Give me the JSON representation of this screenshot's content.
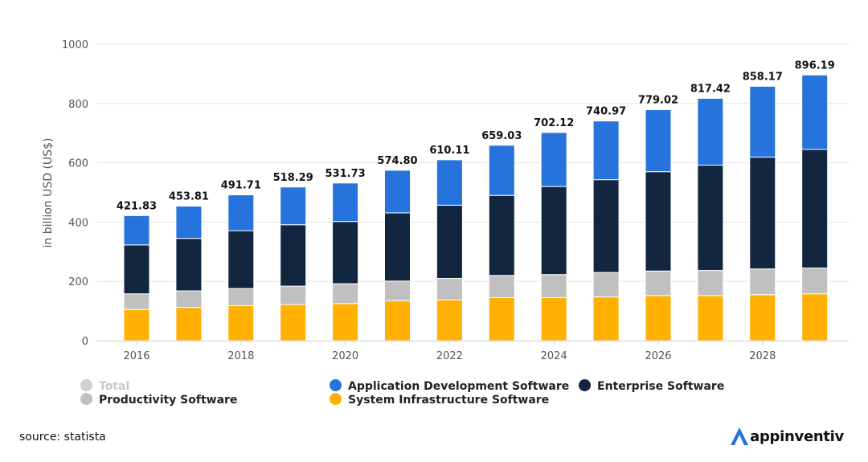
{
  "chart_data": {
    "type": "bar",
    "stacked": true,
    "ylabel": "in billion USD (US$)",
    "ylim": [
      0,
      1000
    ],
    "yticks": [
      0,
      200,
      400,
      600,
      800,
      1000
    ],
    "categories": [
      "2016",
      "2017",
      "2018",
      "2019",
      "2020",
      "2021",
      "2022",
      "2023",
      "2024",
      "2025",
      "2026",
      "2027",
      "2028",
      "2029"
    ],
    "xtick_labels": [
      "2016",
      "",
      "2018",
      "",
      "2020",
      "",
      "2022",
      "",
      "2024",
      "",
      "2026",
      "",
      "2028",
      ""
    ],
    "totals": [
      421.83,
      453.81,
      491.71,
      518.29,
      531.73,
      574.8,
      610.11,
      659.03,
      702.12,
      740.97,
      779.02,
      817.42,
      858.17,
      896.19
    ],
    "total_labels": [
      "421.83",
      "453.81",
      "491.71",
      "518.29",
      "531.73",
      "574.80",
      "610.11",
      "659.03",
      "702.12",
      "740.97",
      "779.02",
      "817.42",
      "858.17",
      "896.19"
    ],
    "series": [
      {
        "name": "System Infrastructure Software",
        "color": "#FFB000",
        "values": [
          105,
          112,
          118,
          122,
          125,
          135,
          138,
          145,
          145,
          148,
          152,
          152,
          155,
          158
        ]
      },
      {
        "name": "Productivity Software",
        "color": "#C0C0C0",
        "values": [
          53,
          56,
          58,
          62,
          67,
          66,
          72,
          75,
          78,
          82,
          83,
          85,
          87,
          87
        ]
      },
      {
        "name": "Enterprise Software",
        "color": "#12263F",
        "values": [
          165,
          177,
          195,
          207,
          210,
          230,
          247,
          270,
          297,
          313,
          335,
          355,
          377,
          400
        ]
      },
      {
        "name": "Application Development Software",
        "color": "#2673DD",
        "values": [
          98.83,
          108.81,
          120.71,
          127.29,
          129.73,
          143.8,
          153.11,
          169.03,
          182.12,
          197.97,
          209.02,
          225.42,
          239.17,
          251.19
        ]
      }
    ],
    "legend": [
      {
        "name": "Total",
        "color": "#D0D0D0",
        "muted": true
      },
      {
        "name": "Application Development Software",
        "color": "#2673DD"
      },
      {
        "name": "Enterprise Software",
        "color": "#12263F"
      },
      {
        "name": "Productivity Software",
        "color": "#C0C0C0"
      },
      {
        "name": "System Infrastructure Software",
        "color": "#FFB000"
      }
    ]
  },
  "footer": {
    "source": "source: statista",
    "brand": "appinventiv",
    "brand_color": "#2673DD"
  }
}
